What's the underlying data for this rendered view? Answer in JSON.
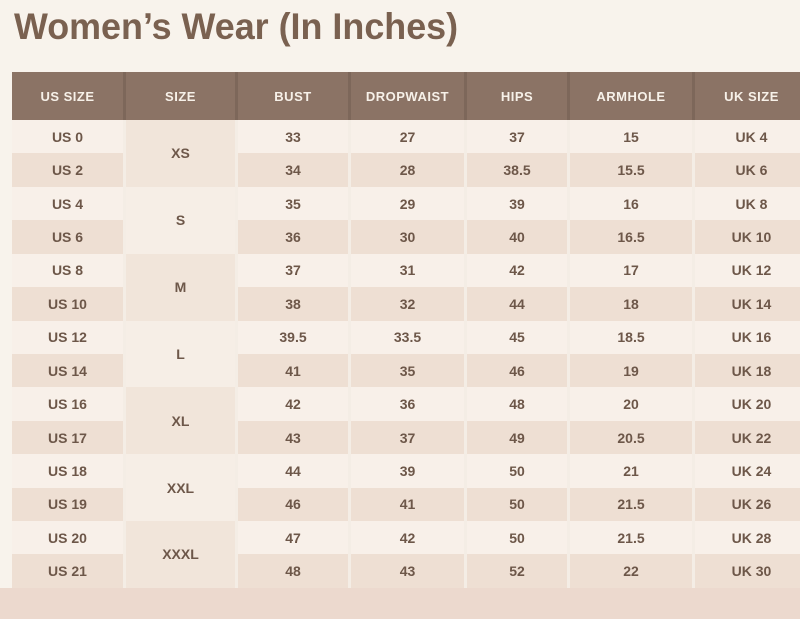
{
  "title": "Women’s Wear (In Inches)",
  "table": {
    "columns": [
      "US SIZE",
      "SIZE",
      "BUST",
      "DROPWAIST",
      "HIPS",
      "ARMHOLE",
      "UK SIZE"
    ],
    "groups": [
      {
        "size": "XS",
        "rows": [
          {
            "us": "US 0",
            "bust": "33",
            "dropwaist": "27",
            "hips": "37",
            "armhole": "15",
            "uk": "UK 4"
          },
          {
            "us": "US 2",
            "bust": "34",
            "dropwaist": "28",
            "hips": "38.5",
            "armhole": "15.5",
            "uk": "UK 6"
          }
        ]
      },
      {
        "size": "S",
        "rows": [
          {
            "us": "US 4",
            "bust": "35",
            "dropwaist": "29",
            "hips": "39",
            "armhole": "16",
            "uk": "UK 8"
          },
          {
            "us": "US 6",
            "bust": "36",
            "dropwaist": "30",
            "hips": "40",
            "armhole": "16.5",
            "uk": "UK 10"
          }
        ]
      },
      {
        "size": "M",
        "rows": [
          {
            "us": "US 8",
            "bust": "37",
            "dropwaist": "31",
            "hips": "42",
            "armhole": "17",
            "uk": "UK 12"
          },
          {
            "us": "US 10",
            "bust": "38",
            "dropwaist": "32",
            "hips": "44",
            "armhole": "18",
            "uk": "UK 14"
          }
        ]
      },
      {
        "size": "L",
        "rows": [
          {
            "us": "US 12",
            "bust": "39.5",
            "dropwaist": "33.5",
            "hips": "45",
            "armhole": "18.5",
            "uk": "UK 16"
          },
          {
            "us": "US 14",
            "bust": "41",
            "dropwaist": "35",
            "hips": "46",
            "armhole": "19",
            "uk": "UK 18"
          }
        ]
      },
      {
        "size": "XL",
        "rows": [
          {
            "us": "US 16",
            "bust": "42",
            "dropwaist": "36",
            "hips": "48",
            "armhole": "20",
            "uk": "UK 20"
          },
          {
            "us": "US 17",
            "bust": "43",
            "dropwaist": "37",
            "hips": "49",
            "armhole": "20.5",
            "uk": "UK 22"
          }
        ]
      },
      {
        "size": "XXL",
        "rows": [
          {
            "us": "US 18",
            "bust": "44",
            "dropwaist": "39",
            "hips": "50",
            "armhole": "21",
            "uk": "UK 24"
          },
          {
            "us": "US 19",
            "bust": "46",
            "dropwaist": "41",
            "hips": "50",
            "armhole": "21.5",
            "uk": "UK 26"
          }
        ]
      },
      {
        "size": "XXXL",
        "rows": [
          {
            "us": "US 20",
            "bust": "47",
            "dropwaist": "42",
            "hips": "50",
            "armhole": "21.5",
            "uk": "UK 28"
          },
          {
            "us": "US 21",
            "bust": "48",
            "dropwaist": "43",
            "hips": "52",
            "armhole": "22",
            "uk": "UK 30"
          }
        ]
      }
    ]
  },
  "chart_data": {
    "type": "table",
    "title": "Women’s Wear (In Inches)",
    "columns": [
      "US SIZE",
      "SIZE",
      "BUST",
      "DROPWAIST",
      "HIPS",
      "ARMHOLE",
      "UK SIZE"
    ],
    "rows": [
      [
        "US 0",
        "XS",
        33,
        27,
        37,
        15,
        "UK 4"
      ],
      [
        "US 2",
        "XS",
        34,
        28,
        38.5,
        15.5,
        "UK 6"
      ],
      [
        "US 4",
        "S",
        35,
        29,
        39,
        16,
        "UK 8"
      ],
      [
        "US 6",
        "S",
        36,
        30,
        40,
        16.5,
        "UK 10"
      ],
      [
        "US 8",
        "M",
        37,
        31,
        42,
        17,
        "UK 12"
      ],
      [
        "US 10",
        "M",
        38,
        32,
        44,
        18,
        "UK 14"
      ],
      [
        "US 12",
        "L",
        39.5,
        33.5,
        45,
        18.5,
        "UK 16"
      ],
      [
        "US 14",
        "L",
        41,
        35,
        46,
        19,
        "UK 18"
      ],
      [
        "US 16",
        "XL",
        42,
        36,
        48,
        20,
        "UK 20"
      ],
      [
        "US 17",
        "XL",
        43,
        37,
        49,
        20.5,
        "UK 22"
      ],
      [
        "US 18",
        "XXL",
        44,
        39,
        50,
        21,
        "UK 24"
      ],
      [
        "US 19",
        "XXL",
        46,
        41,
        50,
        21.5,
        "UK 26"
      ],
      [
        "US 20",
        "XXXL",
        47,
        42,
        50,
        21.5,
        "UK 28"
      ],
      [
        "US 21",
        "XXXL",
        48,
        43,
        52,
        22,
        "UK 30"
      ]
    ]
  },
  "colors": {
    "bg": "#f8f3ec",
    "bottom-band": "#ecd9ce",
    "header-bg": "#8b7365",
    "header-divider": "#7d675a",
    "header-text": "#f7f1e9",
    "row-light": "#f8f0e9",
    "row-dark": "#eedfd3",
    "group-a": "#f1e5da",
    "group-b": "#f6eee6",
    "divider": "#f4ede5",
    "text": "#6d5749",
    "title": "#7a6150"
  }
}
